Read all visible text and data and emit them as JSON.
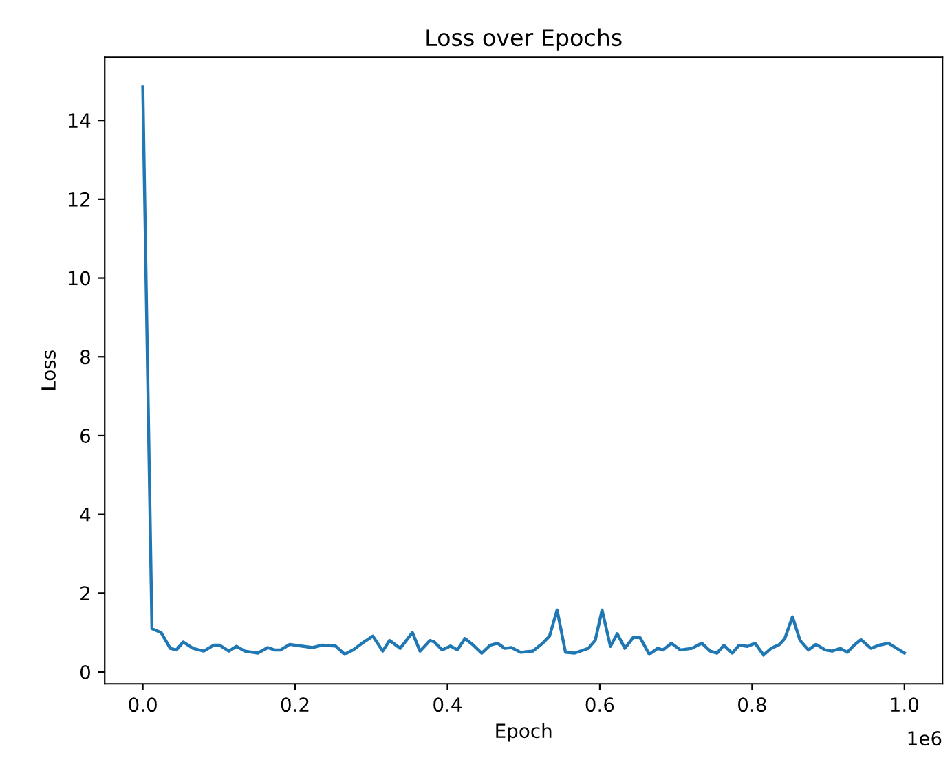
{
  "chart_data": {
    "type": "line",
    "title": "Loss over Epochs",
    "xlabel": "Epoch",
    "ylabel": "Loss",
    "x": [
      0,
      0.012,
      0.024,
      0.036,
      0.044,
      0.053,
      0.066,
      0.08,
      0.093,
      0.101,
      0.113,
      0.123,
      0.134,
      0.151,
      0.164,
      0.173,
      0.181,
      0.193,
      0.208,
      0.223,
      0.235,
      0.253,
      0.265,
      0.276,
      0.288,
      0.302,
      0.315,
      0.324,
      0.338,
      0.354,
      0.364,
      0.377,
      0.383,
      0.393,
      0.404,
      0.413,
      0.423,
      0.434,
      0.445,
      0.456,
      0.466,
      0.475,
      0.484,
      0.496,
      0.512,
      0.525,
      0.534,
      0.544,
      0.555,
      0.567,
      0.585,
      0.594,
      0.603,
      0.614,
      0.623,
      0.633,
      0.644,
      0.653,
      0.665,
      0.676,
      0.683,
      0.694,
      0.706,
      0.721,
      0.734,
      0.745,
      0.754,
      0.763,
      0.774,
      0.783,
      0.794,
      0.804,
      0.815,
      0.825,
      0.836,
      0.843,
      0.853,
      0.863,
      0.874,
      0.884,
      0.896,
      0.905,
      0.916,
      0.925,
      0.934,
      0.943,
      0.956,
      0.967,
      0.979,
      1.0
    ],
    "series": [
      {
        "color": "#1f77b4",
        "values": [
          14.85,
          1.1,
          1.0,
          0.6,
          0.56,
          0.76,
          0.6,
          0.53,
          0.68,
          0.68,
          0.53,
          0.65,
          0.53,
          0.48,
          0.62,
          0.56,
          0.56,
          0.7,
          0.66,
          0.62,
          0.68,
          0.66,
          0.45,
          0.56,
          0.73,
          0.91,
          0.53,
          0.8,
          0.6,
          1.0,
          0.53,
          0.8,
          0.76,
          0.56,
          0.66,
          0.56,
          0.85,
          0.68,
          0.48,
          0.68,
          0.73,
          0.6,
          0.62,
          0.5,
          0.53,
          0.73,
          0.91,
          1.57,
          0.5,
          0.48,
          0.6,
          0.8,
          1.57,
          0.65,
          0.97,
          0.6,
          0.88,
          0.87,
          0.45,
          0.6,
          0.56,
          0.73,
          0.56,
          0.6,
          0.73,
          0.53,
          0.48,
          0.68,
          0.48,
          0.68,
          0.65,
          0.73,
          0.43,
          0.6,
          0.7,
          0.85,
          1.4,
          0.8,
          0.56,
          0.7,
          0.56,
          0.53,
          0.6,
          0.5,
          0.68,
          0.82,
          0.6,
          0.68,
          0.73,
          0.48
        ]
      }
    ],
    "xlim": [
      -0.05,
      1.05
    ],
    "xticks": [
      {
        "value": 0,
        "label": "0.0"
      },
      0.2,
      0.4,
      0.6,
      0.8,
      {
        "value": 1,
        "label": "1.0"
      }
    ],
    "ylim": [
      -0.3,
      15.6
    ],
    "yticks": [
      0,
      2,
      4,
      6,
      8,
      10,
      12,
      14
    ],
    "annotations": [
      "1e6"
    ],
    "grid": false,
    "legend": false
  }
}
